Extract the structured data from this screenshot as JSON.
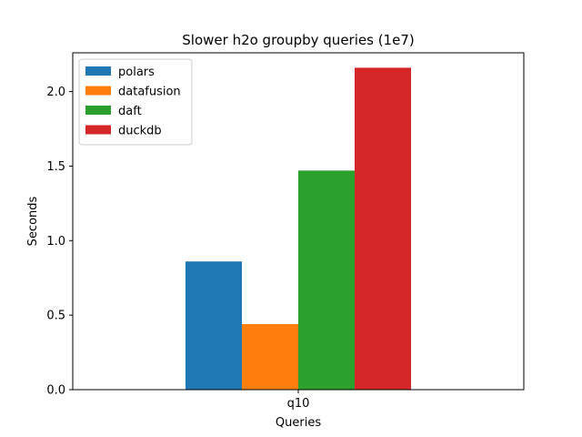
{
  "chart_data": {
    "type": "bar",
    "title": "Slower h2o groupby queries (1e7)",
    "xlabel": "Queries",
    "ylabel": "Seconds",
    "categories": [
      "q10"
    ],
    "series": [
      {
        "name": "polars",
        "values": [
          0.86
        ],
        "color": "#1f77b4"
      },
      {
        "name": "datafusion",
        "values": [
          0.44
        ],
        "color": "#ff7f0e"
      },
      {
        "name": "daft",
        "values": [
          1.47
        ],
        "color": "#2ca02c"
      },
      {
        "name": "duckdb",
        "values": [
          2.16
        ],
        "color": "#d62728"
      }
    ],
    "ylim": [
      0,
      2.26
    ],
    "yticks": [
      "0.0",
      "0.5",
      "1.0",
      "1.5",
      "2.0"
    ],
    "legend": "top-left",
    "grid": false
  }
}
